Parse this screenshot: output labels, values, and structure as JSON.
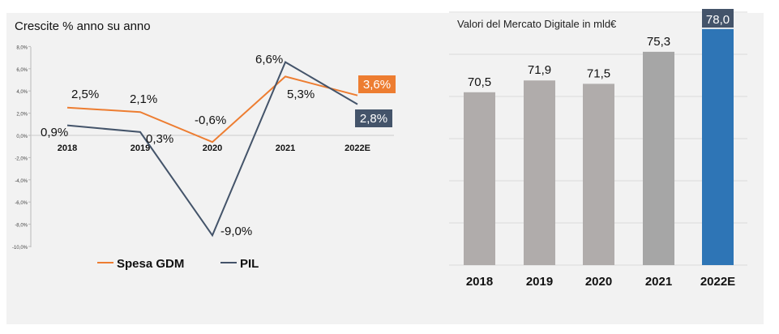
{
  "chart_data": [
    {
      "type": "line",
      "title": "Crescite % anno su anno",
      "categories": [
        "2018",
        "2019",
        "2020",
        "2021",
        "2022E"
      ],
      "ylim": [
        -10,
        8
      ],
      "yticks": [
        "-10,0%",
        "-8,0%",
        "-6,0%",
        "-4,0%",
        "-2,0%",
        "0,0%",
        "2,0%",
        "4,0%",
        "6,0%",
        "8,0%"
      ],
      "series": [
        {
          "name": "Spesa GDM",
          "color": "#ed7d31",
          "values": [
            2.5,
            2.1,
            -0.6,
            5.3,
            3.6
          ],
          "labels": [
            "2,5%",
            "2,1%",
            "-0,6%",
            "5,3%",
            "3,6%"
          ]
        },
        {
          "name": "PIL",
          "color": "#44546a",
          "values": [
            0.9,
            0.3,
            -9.0,
            6.6,
            2.8
          ],
          "labels": [
            "0,9%",
            "0,3%",
            "-9,0%",
            "6,6%",
            "2,8%"
          ]
        }
      ],
      "legend": "bottom"
    },
    {
      "type": "bar",
      "title": "Valori del Mercato Digitale in mld€",
      "categories": [
        "2018",
        "2019",
        "2020",
        "2021",
        "2022E"
      ],
      "values": [
        70.5,
        71.9,
        71.5,
        75.3,
        78.0
      ],
      "labels": [
        "70,5",
        "71,9",
        "71,5",
        "75,3",
        "78,0"
      ],
      "colors": [
        "#b0acab",
        "#b0acab",
        "#b0acab",
        "#a6a6a6",
        "#2e75b6"
      ],
      "ylim": [
        50,
        80
      ],
      "grid": true
    }
  ]
}
